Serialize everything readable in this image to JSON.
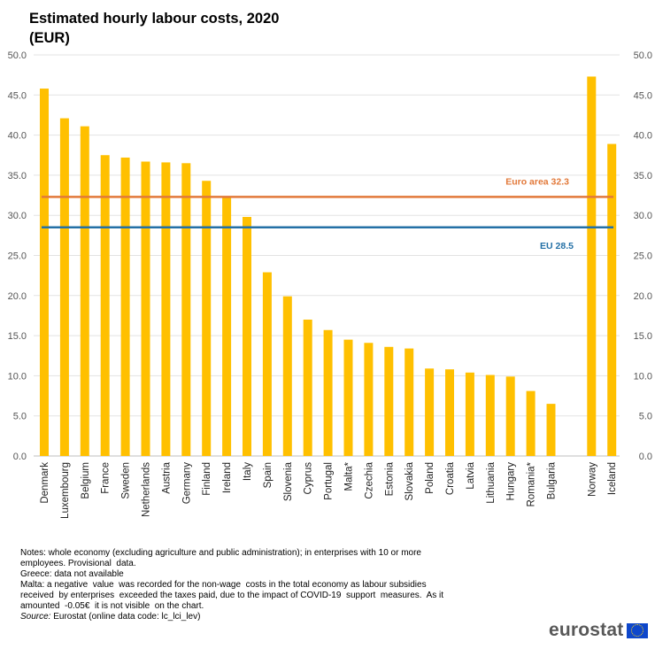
{
  "title_line1": "Estimated hourly labour costs, 2020",
  "title_line2": "(EUR)",
  "chart_data": {
    "type": "bar",
    "title": "Estimated hourly labour costs, 2020 (EUR)",
    "categories": [
      "Denmark",
      "Luxembourg",
      "Belgium",
      "France",
      "Sweden",
      "Netherlands",
      "Austria",
      "Germany",
      "Finland",
      "Ireland",
      "Italy",
      "Spain",
      "Slovenia",
      "Cyprus",
      "Portugal",
      "Malta*",
      "Czechia",
      "Estonia",
      "Slovakia",
      "Poland",
      "Croatia",
      "Latvia",
      "Lithuania",
      "Hungary",
      "Romania*",
      "Bulgaria",
      "Norway",
      "Iceland"
    ],
    "values": [
      45.8,
      42.1,
      41.1,
      37.5,
      37.2,
      36.7,
      36.6,
      36.5,
      34.3,
      32.3,
      29.8,
      22.9,
      19.9,
      17.0,
      15.7,
      14.5,
      14.1,
      13.6,
      13.4,
      10.9,
      10.8,
      10.4,
      10.1,
      9.9,
      8.1,
      6.5,
      47.3,
      38.9
    ],
    "gap_before_index": 26,
    "ylim": [
      0,
      50
    ],
    "yticks": [
      "0.0",
      "5.0",
      "10.0",
      "15.0",
      "20.0",
      "25.0",
      "30.0",
      "35.0",
      "40.0",
      "45.0",
      "50.0"
    ],
    "ytick_values": [
      0,
      5,
      10,
      15,
      20,
      25,
      30,
      35,
      40,
      45,
      50
    ],
    "reference_lines": [
      {
        "label": "Euro area 32.3",
        "value": 32.3,
        "color": "#e2793a"
      },
      {
        "label": "EU 28.5",
        "value": 28.5,
        "color": "#2470a6"
      }
    ],
    "bar_color": "#ffc000",
    "grid": true,
    "xlabel": "",
    "ylabel": ""
  },
  "notes": {
    "line1": "Notes: whole economy (excluding agriculture and public administration); in enterprises with 10 or more",
    "line2": "employees. Provisional  data.",
    "line3": "Greece: data not available",
    "line4": "Malta: a negative  value  was recorded for the non-wage  costs in the total economy as labour subsidies",
    "line5": "received  by enterprises  exceeded the taxes paid, due to the impact of COVID-19  support  measures.  As it",
    "line6": "amounted  -0.05€  it is not visible  on the chart.",
    "source_label": "Source:",
    "source_text": " Eurostat (online data code: lc_lci_lev)"
  },
  "logo_text": "eurostat"
}
